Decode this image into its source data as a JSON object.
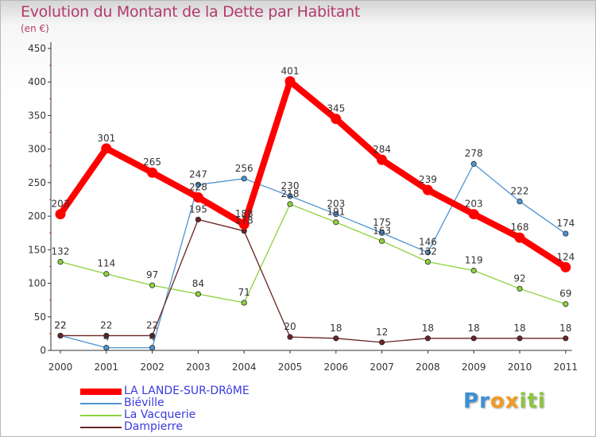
{
  "chart_data": {
    "type": "line",
    "title": "Evolution du Montant de la Dette par Habitant",
    "subtitle": "(en €)",
    "x": [
      "2000",
      "2001",
      "2002",
      "2003",
      "2004",
      "2005",
      "2006",
      "2007",
      "2008",
      "2009",
      "2010",
      "2011"
    ],
    "ylim": [
      0,
      450
    ],
    "yticks": [
      "0",
      "50",
      "100",
      "150",
      "200",
      "250",
      "300",
      "350",
      "400",
      "450"
    ],
    "grid": false,
    "legend": "bottom-left",
    "series": [
      {
        "name": "LA LANDE-SUR-DRôME",
        "color": "#ff0000",
        "values": [
          203,
          301,
          265,
          228,
          188,
          401,
          345,
          284,
          239,
          203,
          168,
          124
        ]
      },
      {
        "name": "Biéville",
        "color": "#4f93d1",
        "values": [
          22,
          4,
          4,
          247,
          256,
          230,
          203,
          175,
          146,
          278,
          222,
          174
        ]
      },
      {
        "name": "La Vacquerie",
        "color": "#8ed13f",
        "values": [
          132,
          114,
          97,
          84,
          71,
          218,
          191,
          163,
          132,
          119,
          92,
          69
        ]
      },
      {
        "name": "Dampierre",
        "color": "#6a2424",
        "values": [
          22,
          22,
          22,
          195,
          178,
          20,
          18,
          12,
          18,
          18,
          18,
          18
        ]
      }
    ]
  },
  "logo": {
    "letters": [
      "P",
      "r",
      "o",
      "x",
      "i",
      "t",
      "i"
    ],
    "colors": [
      "#3c8fd4",
      "#3c8fd4",
      "#f39a1e",
      "#f39a1e",
      "#8bc53f",
      "#8bc53f",
      "#8bc53f"
    ]
  }
}
